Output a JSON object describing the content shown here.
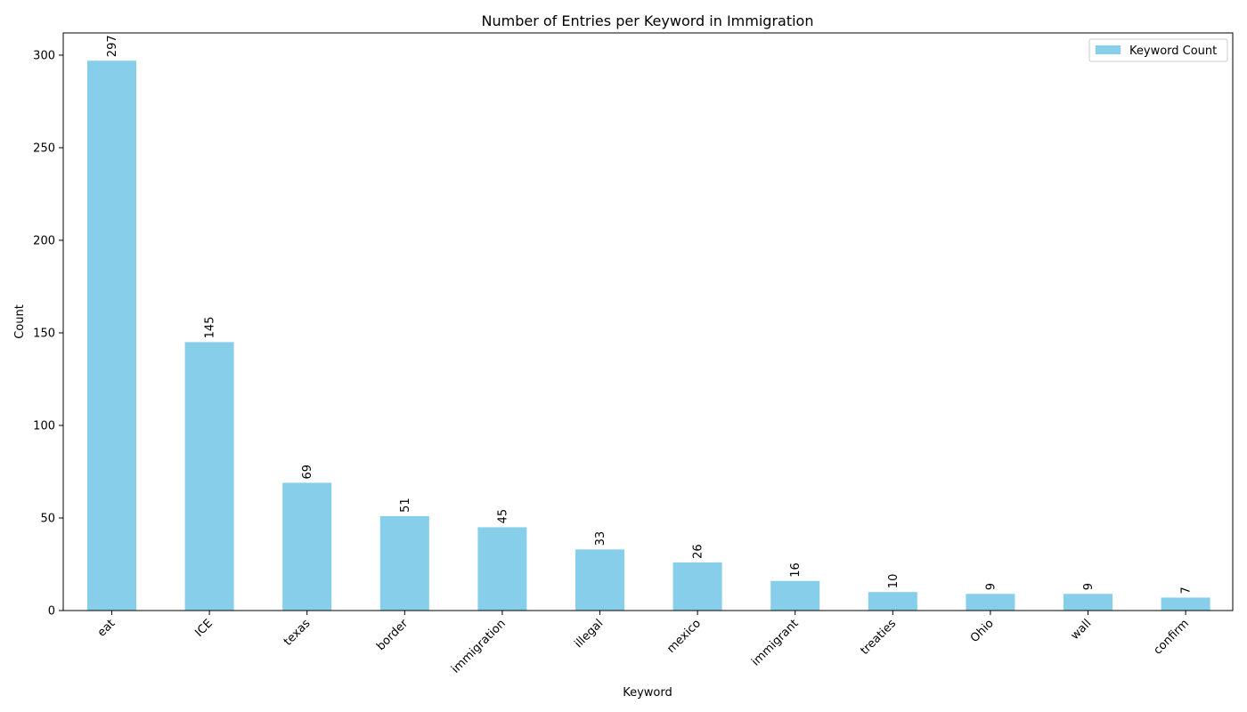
{
  "chart_data": {
    "type": "bar",
    "title": "Number of Entries per Keyword in Immigration",
    "xlabel": "Keyword",
    "ylabel": "Count",
    "categories": [
      "eat",
      "ICE",
      "texas",
      "border",
      "immigration",
      "illegal",
      "mexico",
      "immigrant",
      "treaties",
      "Ohio",
      "wall",
      "confirm"
    ],
    "series": [
      {
        "name": "Keyword Count",
        "values": [
          297,
          145,
          69,
          51,
          45,
          33,
          26,
          16,
          10,
          9,
          9,
          7
        ]
      }
    ],
    "ylim": [
      0,
      312
    ],
    "yticks": [
      0,
      50,
      100,
      150,
      200,
      250,
      300
    ],
    "bar_color": "#87CEEB",
    "grid": false,
    "legend_position": "top-right",
    "xtick_rotation": 45,
    "data_label_rotation": 90
  }
}
